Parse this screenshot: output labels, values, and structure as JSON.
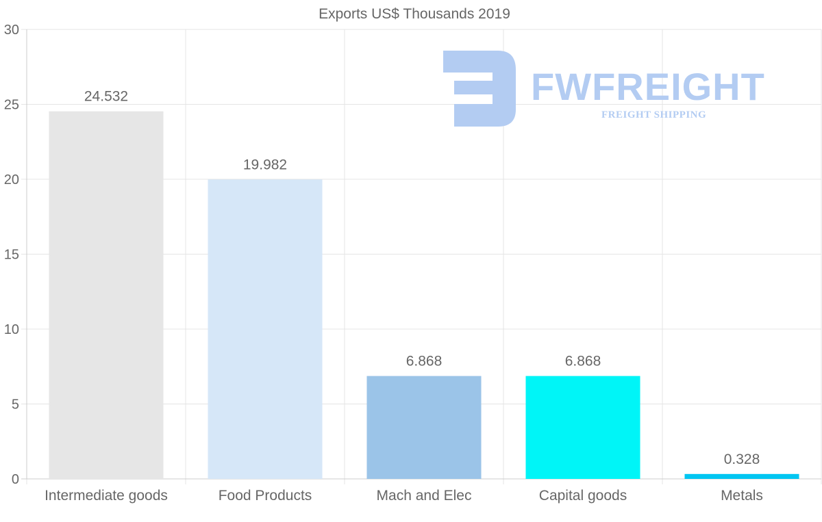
{
  "chart_data": {
    "type": "bar",
    "title": "Exports US$ Thousands 2019",
    "xlabel": "",
    "ylabel": "",
    "ylim": [
      0,
      30
    ],
    "yticks": [
      0,
      5,
      10,
      15,
      20,
      25,
      30
    ],
    "grid": true,
    "categories": [
      "Intermediate goods",
      "Food Products",
      "Mach and Elec",
      "Capital goods",
      "Metals"
    ],
    "values": [
      24.532,
      19.982,
      6.868,
      6.868,
      0.328
    ],
    "value_labels": [
      "24.532",
      "19.982",
      "6.868",
      "6.868",
      "0.328"
    ],
    "colors": [
      "#e6e6e6",
      "#d6e7f8",
      "#9bc4e8",
      "#00f5f7",
      "#00c6f2"
    ]
  },
  "watermark": {
    "name": "FWFREIGHT",
    "tagline": "FREIGHT SHIPPING",
    "color": "#b3ccf2"
  }
}
